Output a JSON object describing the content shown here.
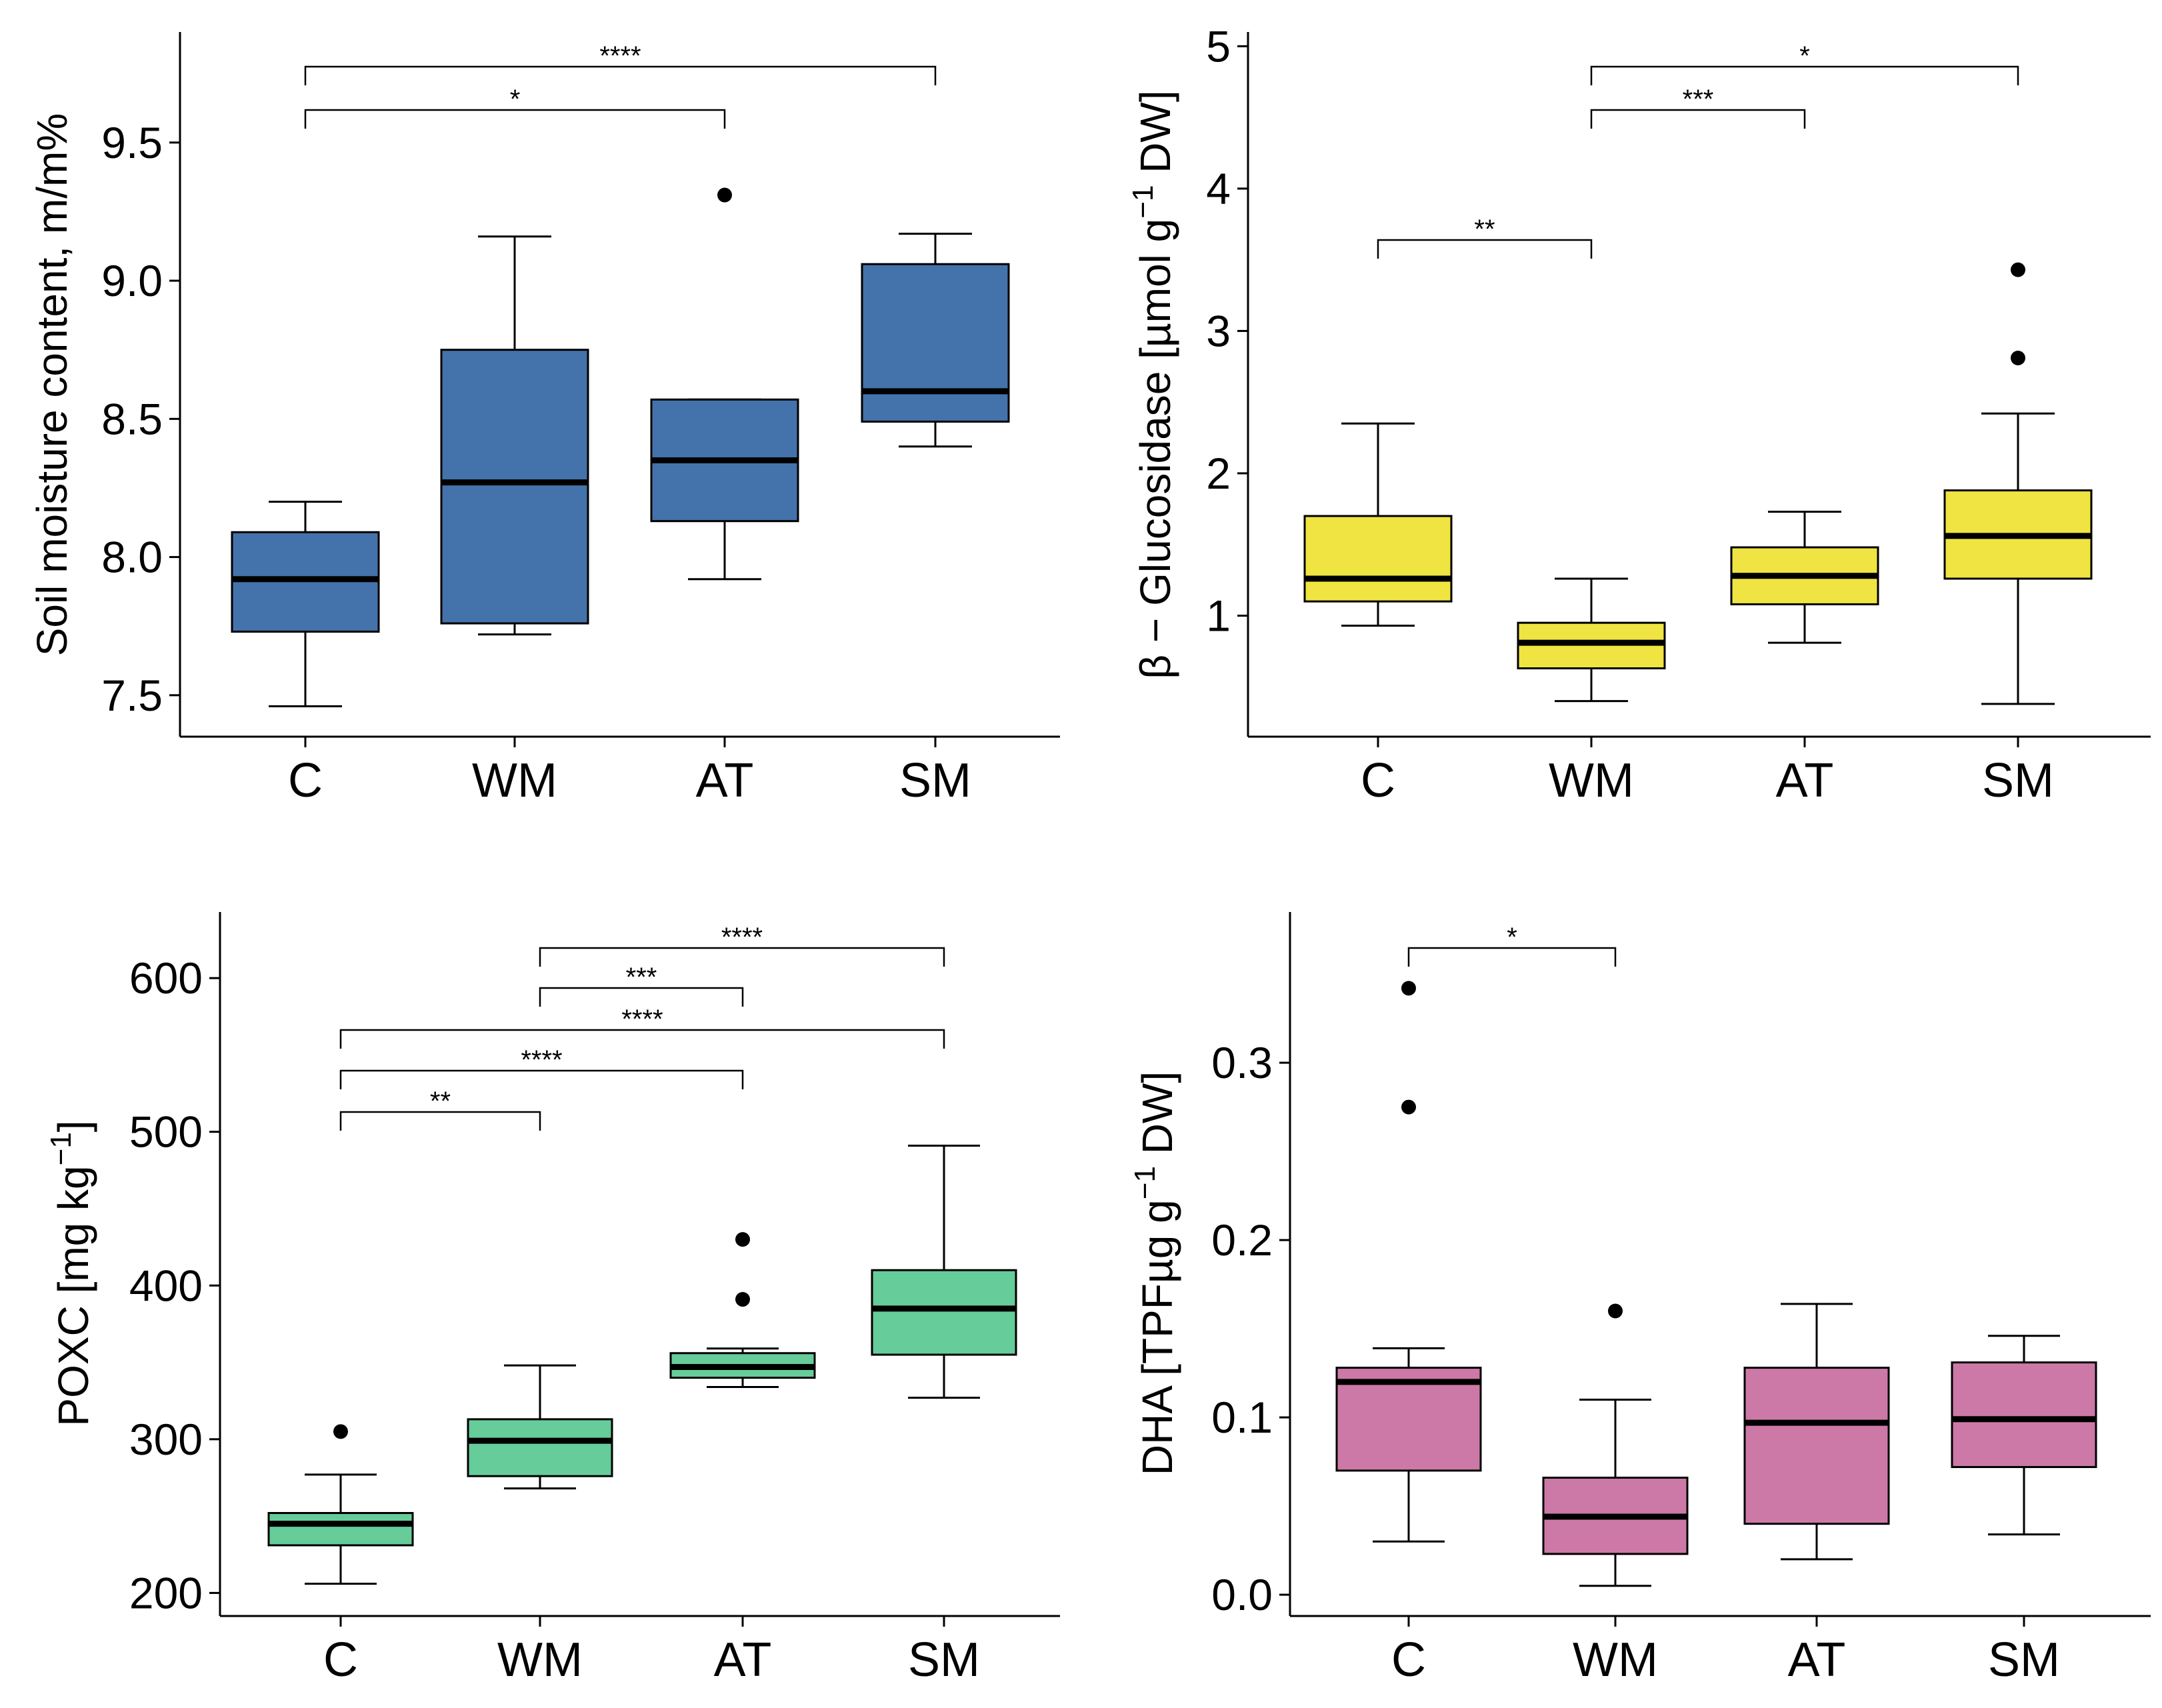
{
  "chart_data": [
    {
      "type": "box",
      "ylabel": "Soil moisture content, m/m%",
      "categories": [
        "C",
        "WM",
        "AT",
        "SM"
      ],
      "color": "#4472AB",
      "ylim": [
        7.35,
        9.9
      ],
      "yticks": [
        7.5,
        8.0,
        8.5,
        9.0,
        9.5
      ],
      "tick_labels": [
        "7.5",
        "8.0",
        "8.5",
        "9.0",
        "9.5"
      ],
      "boxes": [
        {
          "min": 7.46,
          "q1": 7.73,
          "median": 7.92,
          "q3": 8.09,
          "max": 8.2,
          "outliers": []
        },
        {
          "min": 7.72,
          "q1": 7.76,
          "median": 8.27,
          "q3": 8.75,
          "max": 9.16,
          "outliers": []
        },
        {
          "min": 7.92,
          "q1": 8.13,
          "median": 8.35,
          "q3": 8.57,
          "max": 8.57,
          "outliers": [
            9.31
          ]
        },
        {
          "min": 8.4,
          "q1": 8.49,
          "median": 8.6,
          "q3": 9.06,
          "max": 9.17,
          "outliers": []
        }
      ],
      "significance": [
        {
          "from": 0,
          "to": 3,
          "label": "****"
        },
        {
          "from": 0,
          "to": 2,
          "label": "*"
        }
      ]
    },
    {
      "type": "box",
      "ylabel_parts": [
        "β − Glucosidase  [µmol g",
        "−1",
        "  DW]"
      ],
      "categories": [
        "C",
        "WM",
        "AT",
        "SM"
      ],
      "color": "#F0E442",
      "ylim": [
        0.15,
        5.1
      ],
      "yticks": [
        1,
        2,
        3,
        4,
        5
      ],
      "tick_labels": [
        "1",
        "2",
        "3",
        "4",
        "5"
      ],
      "boxes": [
        {
          "min": 0.93,
          "q1": 1.1,
          "median": 1.26,
          "q3": 1.7,
          "max": 2.35,
          "outliers": []
        },
        {
          "min": 0.4,
          "q1": 0.63,
          "median": 0.81,
          "q3": 0.95,
          "max": 1.26,
          "outliers": []
        },
        {
          "min": 0.81,
          "q1": 1.08,
          "median": 1.28,
          "q3": 1.48,
          "max": 1.73,
          "outliers": []
        },
        {
          "min": 0.38,
          "q1": 1.26,
          "median": 1.56,
          "q3": 1.88,
          "max": 2.42,
          "outliers": [
            2.81,
            3.43
          ]
        }
      ],
      "significance": [
        {
          "from": 1,
          "to": 3,
          "label": "*"
        },
        {
          "from": 1,
          "to": 2,
          "label": "***"
        },
        {
          "from": 0,
          "to": 1,
          "label": "**"
        }
      ]
    },
    {
      "type": "box",
      "ylabel_parts": [
        "POXC  [mg  kg",
        "−1",
        "]"
      ],
      "categories": [
        "C",
        "WM",
        "AT",
        "SM"
      ],
      "color": "#66CC99",
      "ylim": [
        185,
        643
      ],
      "yticks": [
        200,
        300,
        400,
        500,
        600
      ],
      "tick_labels": [
        "200",
        "300",
        "400",
        "500",
        "600"
      ],
      "boxes": [
        {
          "min": 206,
          "q1": 231,
          "median": 245,
          "q3": 252,
          "max": 277,
          "outliers": [
            305
          ]
        },
        {
          "min": 268,
          "q1": 276,
          "median": 299,
          "q3": 313,
          "max": 348,
          "outliers": []
        },
        {
          "min": 334,
          "q1": 340,
          "median": 347,
          "q3": 356,
          "max": 359,
          "outliers": [
            391,
            430
          ]
        },
        {
          "min": 327,
          "q1": 355,
          "median": 385,
          "q3": 410,
          "max": 491,
          "outliers": []
        }
      ],
      "significance": [
        {
          "from": 1,
          "to": 3,
          "label": "****"
        },
        {
          "from": 1,
          "to": 2,
          "label": "***"
        },
        {
          "from": 0,
          "to": 3,
          "label": "****"
        },
        {
          "from": 0,
          "to": 2,
          "label": "****"
        },
        {
          "from": 0,
          "to": 1,
          "label": "**"
        }
      ]
    },
    {
      "type": "box",
      "ylabel_parts": [
        "DHA  [TPFµg g",
        "−1",
        "  DW]"
      ],
      "categories": [
        "C",
        "WM",
        "AT",
        "SM"
      ],
      "color": "#CC79A7",
      "ylim": [
        -0.012,
        0.385
      ],
      "yticks": [
        0.0,
        0.1,
        0.2,
        0.3
      ],
      "tick_labels": [
        "0.0",
        "0.1",
        "0.2",
        "0.3"
      ],
      "boxes": [
        {
          "min": 0.03,
          "q1": 0.07,
          "median": 0.12,
          "q3": 0.128,
          "max": 0.139,
          "outliers": [
            0.275,
            0.342
          ]
        },
        {
          "min": 0.005,
          "q1": 0.023,
          "median": 0.044,
          "q3": 0.066,
          "max": 0.11,
          "outliers": [
            0.16
          ]
        },
        {
          "min": 0.02,
          "q1": 0.04,
          "median": 0.097,
          "q3": 0.128,
          "max": 0.164,
          "outliers": []
        },
        {
          "min": 0.034,
          "q1": 0.072,
          "median": 0.099,
          "q3": 0.131,
          "max": 0.146,
          "outliers": []
        }
      ],
      "significance": [
        {
          "from": 0,
          "to": 1,
          "label": "*"
        }
      ]
    }
  ]
}
